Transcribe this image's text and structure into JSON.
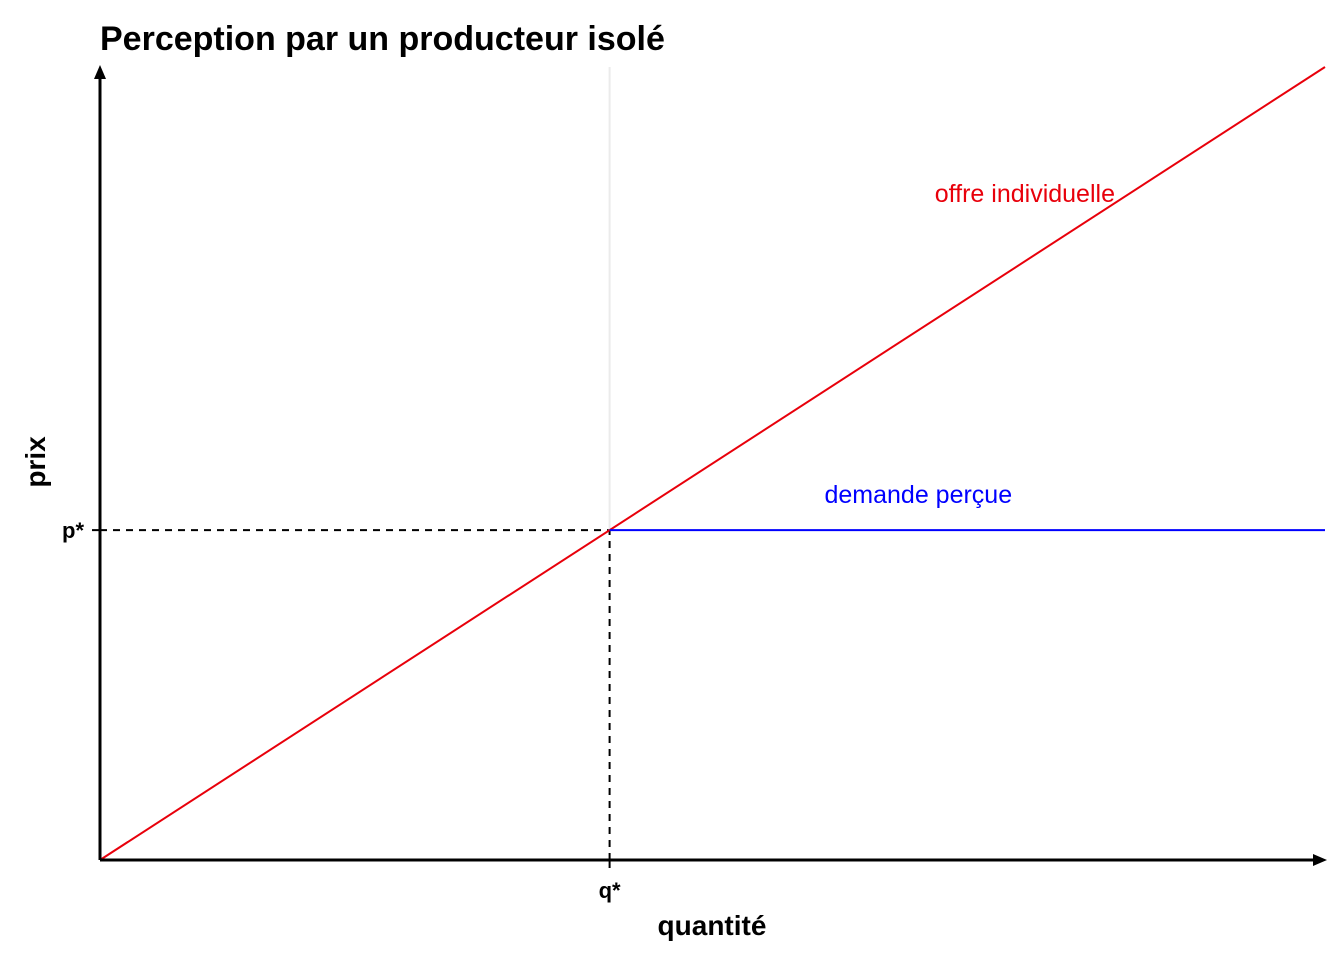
{
  "chart_data": {
    "type": "line",
    "title": "Perception par un producteur isolé",
    "xlabel": "quantité",
    "ylabel": "prix",
    "xlim": [
      0,
      10
    ],
    "ylim": [
      0,
      10
    ],
    "grid": false,
    "x_ticks": [
      {
        "value": 4.16,
        "label": "q*"
      }
    ],
    "y_ticks": [
      {
        "value": 4.16,
        "label": "p*"
      }
    ],
    "series": [
      {
        "name": "offre individuelle",
        "color": "#e8000b",
        "x": [
          0,
          10
        ],
        "y": [
          0,
          10
        ]
      },
      {
        "name": "demande perçue",
        "color": "#0000ff",
        "x": [
          4.16,
          10
        ],
        "y": [
          4.16,
          4.16
        ]
      }
    ],
    "reference_lines": [
      {
        "orientation": "horizontal",
        "value": 4.16,
        "style": "dashed",
        "color": "#000000",
        "x_range": [
          0,
          4.16
        ]
      },
      {
        "orientation": "vertical",
        "value": 4.16,
        "style": "dashed",
        "color": "#000000",
        "y_range": [
          0,
          4.16
        ]
      },
      {
        "orientation": "vertical",
        "value": 4.16,
        "style": "solid",
        "color": "#ebebeb",
        "y_range": [
          4.16,
          10
        ]
      }
    ],
    "annotations": [
      {
        "text": "offre individuelle",
        "x": 7.55,
        "y": 8.3,
        "color": "#e8000b"
      },
      {
        "text": "demande perçue",
        "x": 6.68,
        "y": 4.5,
        "color": "#0000ff"
      }
    ]
  }
}
